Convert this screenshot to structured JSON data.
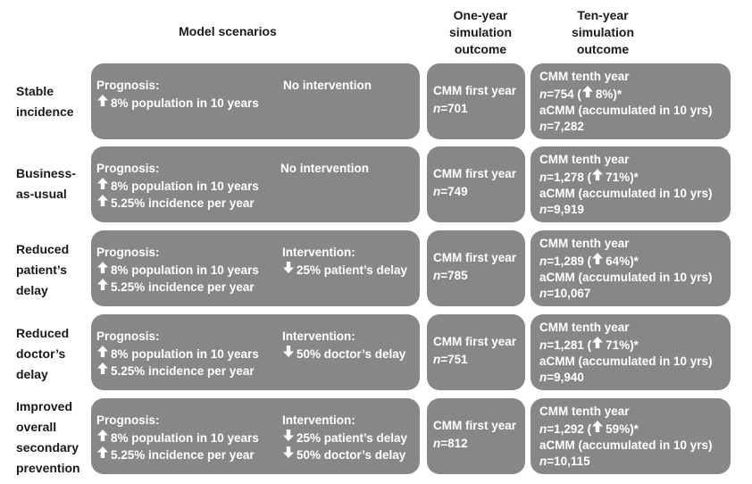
{
  "headers": {
    "scenarios": "Model scenarios",
    "one_year": [
      "One-year",
      "simulation",
      "outcome"
    ],
    "ten_year": [
      "Ten-year",
      "simulation",
      "outcome"
    ]
  },
  "colors": {
    "box": "#878787",
    "text": "#ffffff",
    "label": "#1a1a1a"
  },
  "icons": {
    "up": "up-arrow-icon",
    "down": "down-arrow-icon"
  },
  "rows": [
    {
      "label": [
        "Stable",
        "incidence"
      ],
      "prognosis_title": "Prognosis:",
      "prognosis": [
        "8% population in 10 years"
      ],
      "intervention_title": "No intervention",
      "intervention": [],
      "one_year": {
        "title": "CMM first year",
        "n_prefix": "n",
        "n_value": "=701"
      },
      "ten_year": {
        "title": "CMM tenth year",
        "n_prefix": "n",
        "n_value": "=754 (",
        "change": "8%)*",
        "acmm": "aCMM (accumulated in 10 yrs)",
        "acmm_prefix": "n",
        "acmm_value": "=7,282"
      }
    },
    {
      "label": [
        "Business-",
        "as-usual"
      ],
      "prognosis_title": "Prognosis:",
      "prognosis": [
        "8% population in 10 years",
        "5.25% incidence per year"
      ],
      "intervention_title": "No intervention",
      "intervention": [],
      "one_year": {
        "title": "CMM first year",
        "n_prefix": "n",
        "n_value": "=749"
      },
      "ten_year": {
        "title": "CMM tenth year",
        "n_prefix": "n",
        "n_value": "=1,278 (",
        "change": "71%)*",
        "acmm": "aCMM (accumulated in 10 yrs)",
        "acmm_prefix": "n",
        "acmm_value": "=9,919"
      }
    },
    {
      "label": [
        "Reduced",
        "patient’s",
        "delay"
      ],
      "prognosis_title": "Prognosis:",
      "prognosis": [
        "8% population in 10 years",
        "5.25% incidence per year"
      ],
      "intervention_title": "Intervention:",
      "intervention": [
        "25% patient’s delay"
      ],
      "one_year": {
        "title": "CMM first year",
        "n_prefix": "n",
        "n_value": "=785"
      },
      "ten_year": {
        "title": "CMM tenth year",
        "n_prefix": "n",
        "n_value": "=1,289 (",
        "change": "64%)*",
        "acmm": "aCMM (accumulated in 10 yrs)",
        "acmm_prefix": "n",
        "acmm_value": "=10,067"
      }
    },
    {
      "label": [
        "Reduced",
        "doctor’s",
        "delay"
      ],
      "prognosis_title": "Prognosis:",
      "prognosis": [
        "8% population in 10 years",
        "5.25% incidence per year"
      ],
      "intervention_title": "Intervention:",
      "intervention": [
        "50% doctor’s delay"
      ],
      "one_year": {
        "title": "CMM first year",
        "n_prefix": "n",
        "n_value": "=751"
      },
      "ten_year": {
        "title": "CMM tenth year",
        "n_prefix": "n",
        "n_value": "=1,281 (",
        "change": "71%)*",
        "acmm": "aCMM (accumulated in 10 yrs)",
        "acmm_prefix": "n",
        "acmm_value": "=9,940"
      }
    },
    {
      "label": [
        "Improved",
        "overall",
        "secondary",
        "prevention"
      ],
      "prognosis_title": "Prognosis:",
      "prognosis": [
        "8% population in 10 years",
        "5.25% incidence per year"
      ],
      "intervention_title": "Intervention:",
      "intervention": [
        "25% patient’s delay",
        "50% doctor’s delay"
      ],
      "one_year": {
        "title": "CMM first year",
        "n_prefix": "n",
        "n_value": "=812"
      },
      "ten_year": {
        "title": "CMM tenth year",
        "n_prefix": "n",
        "n_value": "=1,292 (",
        "change": "59%)*",
        "acmm": "aCMM (accumulated in 10 yrs)",
        "acmm_prefix": "n",
        "acmm_value": "=10,115"
      }
    }
  ]
}
